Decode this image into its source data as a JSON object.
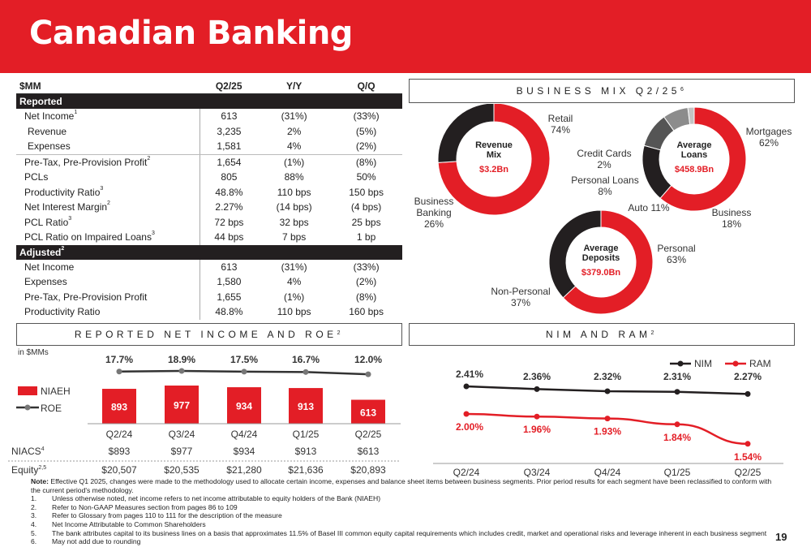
{
  "header": {
    "title": "Canadian Banking"
  },
  "financial_table": {
    "columns": [
      "$MM",
      "Q2/25",
      "Y/Y",
      "Q/Q"
    ],
    "sections": [
      {
        "title": "Reported",
        "title_sup": "",
        "rows": [
          {
            "label": "Net Income",
            "sup": "1",
            "values": [
              "613",
              "(31%)",
              "(33%)"
            ],
            "sub": false
          },
          {
            "label": "Revenue",
            "sup": "",
            "values": [
              "3,235",
              "2%",
              "(5%)"
            ],
            "sub": true
          },
          {
            "label": "Expenses",
            "sup": "",
            "values": [
              "1,581",
              "4%",
              "(2%)"
            ],
            "sub": true
          },
          {
            "label": "Pre-Tax, Pre-Provision Profit",
            "sup": "2",
            "values": [
              "1,654",
              "(1%)",
              "(8%)"
            ],
            "sub": false
          },
          {
            "label": "PCLs",
            "sup": "",
            "values": [
              "805",
              "88%",
              "50%"
            ],
            "sub": false
          },
          {
            "label": "Productivity Ratio",
            "sup": "3",
            "values": [
              "48.8%",
              "110 bps",
              "150 bps"
            ],
            "sub": false
          },
          {
            "label": "Net Interest Margin",
            "sup": "2",
            "values": [
              "2.27%",
              "(14 bps)",
              "(4 bps)"
            ],
            "sub": false
          },
          {
            "label": "PCL Ratio",
            "sup": "3",
            "values": [
              "72 bps",
              "32 bps",
              "25 bps"
            ],
            "sub": false
          },
          {
            "label": "PCL Ratio on Impaired Loans",
            "sup": "3",
            "values": [
              "44 bps",
              "7 bps",
              "1 bp"
            ],
            "sub": false
          }
        ]
      },
      {
        "title": "Adjusted",
        "title_sup": "2",
        "rows": [
          {
            "label": "Net Income",
            "sup": "",
            "values": [
              "613",
              "(31%)",
              "(33%)"
            ],
            "sub": false
          },
          {
            "label": "Expenses",
            "sup": "",
            "values": [
              "1,580",
              "4%",
              "(2%)"
            ],
            "sub": false
          },
          {
            "label": "Pre-Tax, Pre-Provision Profit",
            "sup": "",
            "values": [
              "1,655",
              "(1%)",
              "(8%)"
            ],
            "sub": false
          },
          {
            "label": "Productivity Ratio",
            "sup": "",
            "values": [
              "48.8%",
              "110 bps",
              "160 bps"
            ],
            "sub": false
          }
        ]
      }
    ]
  },
  "business_mix": {
    "title": "BUSINESS MIX Q2/25",
    "title_sup": "6"
  },
  "net_income_box": {
    "title": "REPORTED NET INCOME AND ROE",
    "title_sup": "2"
  },
  "nim_box": {
    "title": "NIM AND RAM",
    "title_sup": "2"
  },
  "colors": {
    "red": "#e31e26",
    "black": "#231f20",
    "dark_grey": "#555555",
    "grey": "#8c8c8c",
    "light_grey": "#c4c4c4"
  },
  "chart_data": [
    {
      "type": "pie",
      "variant": "donut",
      "title": "Revenue Mix",
      "center_value": "$3.2Bn",
      "slices": [
        {
          "label": "Retail",
          "value": 74,
          "display": "74%",
          "color": "#e31e26"
        },
        {
          "label": "Business Banking",
          "value": 26,
          "display": "26%",
          "color": "#231f20"
        }
      ]
    },
    {
      "type": "pie",
      "variant": "donut",
      "title": "Average Loans",
      "center_value": "$458.9Bn",
      "slices": [
        {
          "label": "Mortgages",
          "value": 62,
          "display": "62%",
          "color": "#e31e26"
        },
        {
          "label": "Business",
          "value": 18,
          "display": "18%",
          "color": "#231f20"
        },
        {
          "label": "Auto 11%",
          "value": 11,
          "display": "",
          "color": "#555555"
        },
        {
          "label": "Personal Loans",
          "value": 8,
          "display": "8%",
          "color": "#8c8c8c"
        },
        {
          "label": "Credit Cards",
          "value": 2,
          "display": "2%",
          "color": "#c4c4c4"
        }
      ]
    },
    {
      "type": "pie",
      "variant": "donut",
      "title": "Average Deposits",
      "center_value": "$379.0Bn",
      "slices": [
        {
          "label": "Personal",
          "value": 63,
          "display": "63%",
          "color": "#e31e26"
        },
        {
          "label": "Non-Personal",
          "value": 37,
          "display": "37%",
          "color": "#231f20"
        }
      ]
    },
    {
      "type": "bar",
      "unit_label": "in $MMs",
      "categories": [
        "Q2/24",
        "Q3/24",
        "Q4/24",
        "Q1/25",
        "Q2/25"
      ],
      "series": [
        {
          "name": "NIAEH",
          "type": "bar",
          "values": [
            893,
            977,
            934,
            913,
            613
          ],
          "color": "#e31e26"
        },
        {
          "name": "ROE",
          "type": "line",
          "values": [
            17.7,
            18.9,
            17.5,
            16.7,
            12.0
          ],
          "labels": [
            "17.7%",
            "18.9%",
            "17.5%",
            "16.7%",
            "12.0%"
          ],
          "color": "#231f20"
        }
      ],
      "table_rows": [
        {
          "label": "NIACS",
          "sup": "4",
          "values": [
            "$893",
            "$977",
            "$934",
            "$913",
            "$613"
          ]
        },
        {
          "label": "Equity",
          "sup": "2,5",
          "values": [
            "$20,507",
            "$20,535",
            "$21,280",
            "$21,636",
            "$20,893"
          ]
        }
      ],
      "legend": "left"
    },
    {
      "type": "line",
      "categories": [
        "Q2/24",
        "Q3/24",
        "Q4/24",
        "Q1/25",
        "Q2/25"
      ],
      "series": [
        {
          "name": "NIM",
          "values": [
            2.41,
            2.36,
            2.32,
            2.31,
            2.27
          ],
          "labels": [
            "2.41%",
            "2.36%",
            "2.32%",
            "2.31%",
            "2.27%"
          ],
          "color": "#231f20"
        },
        {
          "name": "RAM",
          "values": [
            2.0,
            1.96,
            1.93,
            1.84,
            1.54
          ],
          "labels": [
            "2.00%",
            "1.96%",
            "1.93%",
            "1.84%",
            "1.54%"
          ],
          "color": "#e31e26"
        }
      ],
      "legend": "top-right"
    }
  ],
  "notes": {
    "lead": "Note:",
    "lead_text": "Effective Q1 2025, changes were made to the methodology used to allocate certain income, expenses and balance sheet items between business segments. Prior period results for each segment have been reclassified to conform with the current period's methodology.",
    "items": [
      {
        "n": "1.",
        "text": "Unless otherwise noted, net income refers to net income attributable to equity holders of the Bank (NIAEH)"
      },
      {
        "n": "2.",
        "text": "Refer to Non-GAAP Measures section from pages 86 to 109"
      },
      {
        "n": "3.",
        "text": "Refer to Glossary from pages 110 to 111 for the description of the measure"
      },
      {
        "n": "4.",
        "text": "Net Income Attributable to Common Shareholders"
      },
      {
        "n": "5.",
        "text": "The bank attributes capital to its business lines on a basis that approximates 11.5% of Basel III common equity capital requirements which includes credit, market and operational risks and leverage inherent in each business segment"
      },
      {
        "n": "6.",
        "text": "May not add due to rounding"
      }
    ]
  },
  "page_number": "19"
}
